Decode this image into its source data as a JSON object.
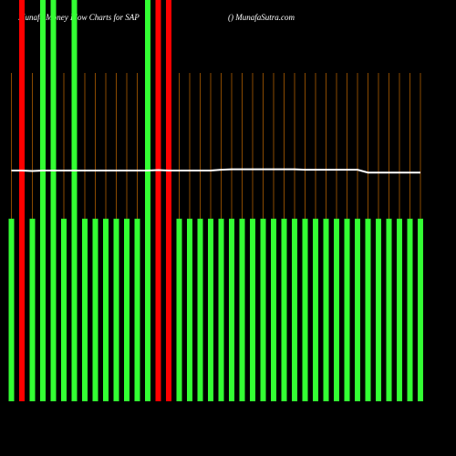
{
  "chart_data": {
    "type": "bar",
    "title": "Munafa Money Flow Charts for SAP",
    "subtitle": "() MunafaSutra.com",
    "categories": [
      null,
      null,
      null,
      null,
      null,
      null,
      null,
      null,
      null,
      null,
      null,
      null,
      null,
      null,
      null,
      null,
      null,
      null,
      null,
      null,
      null,
      null,
      null,
      null,
      null,
      null,
      null,
      null,
      null,
      null,
      null,
      null,
      null,
      null,
      null,
      null,
      null,
      null,
      null,
      null
    ],
    "values": [
      45.5,
      100,
      45.5,
      100,
      100,
      45.5,
      100,
      45.5,
      45.5,
      45.5,
      45.5,
      45.5,
      45.5,
      100,
      100,
      100,
      45.5,
      45.5,
      45.5,
      45.5,
      45.5,
      45.5,
      45.5,
      45.5,
      45.5,
      45.5,
      45.5,
      45.5,
      45.5,
      45.5,
      45.5,
      45.5,
      45.5,
      45.5,
      45.5,
      45.5,
      45.5,
      45.5,
      45.5,
      45.5
    ],
    "colors": [
      "#33ff33",
      "#ff0000",
      "#33ff33",
      "#33ff33",
      "#33ff33",
      "#33ff33",
      "#33ff33",
      "#33ff33",
      "#33ff33",
      "#33ff33",
      "#33ff33",
      "#33ff33",
      "#33ff33",
      "#33ff33",
      "#ff0000",
      "#ff0000",
      "#33ff33",
      "#33ff33",
      "#33ff33",
      "#33ff33",
      "#33ff33",
      "#33ff33",
      "#33ff33",
      "#33ff33",
      "#33ff33",
      "#33ff33",
      "#33ff33",
      "#33ff33",
      "#33ff33",
      "#33ff33",
      "#33ff33",
      "#33ff33",
      "#33ff33",
      "#33ff33",
      "#33ff33",
      "#33ff33",
      "#33ff33",
      "#33ff33",
      "#33ff33",
      "#33ff33"
    ],
    "line": {
      "color": "#ffffff",
      "values": [
        57.5,
        57.5,
        57.4,
        57.5,
        57.5,
        57.5,
        57.5,
        57.5,
        57.5,
        57.5,
        57.5,
        57.5,
        57.5,
        57.5,
        57.6,
        57.5,
        57.5,
        57.5,
        57.5,
        57.5,
        57.7,
        57.8,
        57.8,
        57.8,
        57.8,
        57.8,
        57.8,
        57.8,
        57.7,
        57.7,
        57.7,
        57.7,
        57.7,
        57.7,
        57.0,
        57.0,
        57.0,
        57.0,
        57.0,
        57.0
      ]
    },
    "ylim": [
      0,
      100
    ],
    "guide_color": "#8a4a00"
  }
}
